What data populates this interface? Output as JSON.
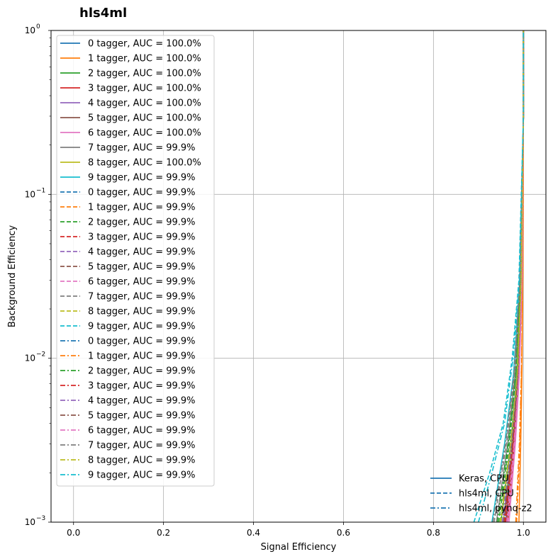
{
  "chart_data": {
    "type": "line",
    "title": "hls4ml",
    "xlabel": "Signal Efficiency",
    "ylabel": "Background Efficiency",
    "xlim": [
      -0.05,
      1.05
    ],
    "ylim": [
      0.001,
      1
    ],
    "yscale": "log",
    "grid": true,
    "x_ticks": [
      "0.0",
      "0.2",
      "0.4",
      "0.6",
      "0.8",
      "1.0"
    ],
    "x_tick_values": [
      0,
      0.2,
      0.4,
      0.6,
      0.8,
      1.0
    ],
    "y_ticks": [
      {
        "base": "10",
        "exp": "−3",
        "value": 0.001
      },
      {
        "base": "10",
        "exp": "−2",
        "value": 0.01
      },
      {
        "base": "10",
        "exp": "−1",
        "value": 0.1
      },
      {
        "base": "10",
        "exp": "0",
        "value": 1
      }
    ],
    "legend_placement": "upper-left",
    "style_legend_placement": "lower-right",
    "colors": [
      "#1f77b4",
      "#ff7f0e",
      "#2ca02c",
      "#d62728",
      "#9467bd",
      "#8c564b",
      "#e377c2",
      "#7f7f7f",
      "#bcbd22",
      "#17becf"
    ],
    "series": [
      {
        "name": "0 tagger, AUC = 100.0%",
        "style": "solid",
        "color": "#1f77b4",
        "x": [
          0.955,
          0.975,
          0.988,
          0.995,
          1.0,
          1.0
        ],
        "y": [
          0.001,
          0.0025,
          0.007,
          0.03,
          0.3,
          1
        ]
      },
      {
        "name": "1 tagger, AUC = 100.0%",
        "style": "solid",
        "color": "#ff7f0e",
        "x": [
          0.99,
          0.994,
          0.997,
          0.999,
          1.0,
          1.0
        ],
        "y": [
          0.001,
          0.003,
          0.009,
          0.04,
          0.3,
          1
        ]
      },
      {
        "name": "2 tagger, AUC = 100.0%",
        "style": "solid",
        "color": "#2ca02c",
        "x": [
          0.95,
          0.972,
          0.986,
          0.995,
          1.0,
          1.0
        ],
        "y": [
          0.001,
          0.003,
          0.008,
          0.03,
          0.3,
          1
        ]
      },
      {
        "name": "3 tagger, AUC = 100.0%",
        "style": "solid",
        "color": "#d62728",
        "x": [
          0.965,
          0.98,
          0.99,
          0.996,
          1.0,
          1.0
        ],
        "y": [
          0.001,
          0.003,
          0.008,
          0.03,
          0.3,
          1
        ]
      },
      {
        "name": "4 tagger, AUC = 100.0%",
        "style": "solid",
        "color": "#9467bd",
        "x": [
          0.96,
          0.978,
          0.99,
          0.996,
          1.0,
          1.0
        ],
        "y": [
          0.001,
          0.003,
          0.008,
          0.03,
          0.3,
          1
        ]
      },
      {
        "name": "5 tagger, AUC = 100.0%",
        "style": "solid",
        "color": "#8c564b",
        "x": [
          0.962,
          0.978,
          0.99,
          0.996,
          1.0,
          1.0
        ],
        "y": [
          0.001,
          0.003,
          0.008,
          0.03,
          0.3,
          1
        ]
      },
      {
        "name": "6 tagger, AUC = 100.0%",
        "style": "solid",
        "color": "#e377c2",
        "x": [
          0.968,
          0.982,
          0.991,
          0.997,
          1.0,
          1.0
        ],
        "y": [
          0.001,
          0.003,
          0.008,
          0.03,
          0.3,
          1
        ]
      },
      {
        "name": "7 tagger, AUC = 99.9%",
        "style": "solid",
        "color": "#7f7f7f",
        "x": [
          0.94,
          0.965,
          0.982,
          0.993,
          1.0,
          1.0
        ],
        "y": [
          0.001,
          0.003,
          0.008,
          0.03,
          0.3,
          1
        ]
      },
      {
        "name": "8 tagger, AUC = 100.0%",
        "style": "solid",
        "color": "#bcbd22",
        "x": [
          0.955,
          0.975,
          0.988,
          0.995,
          1.0,
          1.0
        ],
        "y": [
          0.001,
          0.003,
          0.008,
          0.03,
          0.3,
          1
        ]
      },
      {
        "name": "9 tagger, AUC = 99.9%",
        "style": "solid",
        "color": "#17becf",
        "x": [
          0.93,
          0.958,
          0.978,
          0.992,
          1.0,
          1.0
        ],
        "y": [
          0.001,
          0.003,
          0.008,
          0.03,
          0.3,
          1
        ]
      },
      {
        "name": "0 tagger, AUC = 99.9%",
        "style": "dashed",
        "color": "#1f77b4",
        "x": [
          0.95,
          0.972,
          0.986,
          0.995,
          1.0,
          1.0
        ],
        "y": [
          0.001,
          0.003,
          0.008,
          0.03,
          0.3,
          1
        ]
      },
      {
        "name": "1 tagger, AUC = 99.9%",
        "style": "dashed",
        "color": "#ff7f0e",
        "x": [
          0.985,
          0.992,
          0.996,
          0.999,
          1.0,
          1.0
        ],
        "y": [
          0.001,
          0.003,
          0.009,
          0.04,
          0.3,
          1
        ]
      },
      {
        "name": "2 tagger, AUC = 99.9%",
        "style": "dashed",
        "color": "#2ca02c",
        "x": [
          0.945,
          0.968,
          0.984,
          0.994,
          1.0,
          1.0
        ],
        "y": [
          0.001,
          0.003,
          0.008,
          0.03,
          0.3,
          1
        ]
      },
      {
        "name": "3 tagger, AUC = 99.9%",
        "style": "dashed",
        "color": "#d62728",
        "x": [
          0.96,
          0.978,
          0.989,
          0.996,
          1.0,
          1.0
        ],
        "y": [
          0.001,
          0.003,
          0.008,
          0.03,
          0.3,
          1
        ]
      },
      {
        "name": "4 tagger, AUC = 99.9%",
        "style": "dashed",
        "color": "#9467bd",
        "x": [
          0.955,
          0.975,
          0.988,
          0.995,
          1.0,
          1.0
        ],
        "y": [
          0.001,
          0.003,
          0.008,
          0.03,
          0.3,
          1
        ]
      },
      {
        "name": "5 tagger, AUC = 99.9%",
        "style": "dashed",
        "color": "#8c564b",
        "x": [
          0.958,
          0.976,
          0.989,
          0.996,
          1.0,
          1.0
        ],
        "y": [
          0.001,
          0.003,
          0.008,
          0.03,
          0.3,
          1
        ]
      },
      {
        "name": "6 tagger, AUC = 99.9%",
        "style": "dashed",
        "color": "#e377c2",
        "x": [
          0.965,
          0.98,
          0.99,
          0.997,
          1.0,
          1.0
        ],
        "y": [
          0.001,
          0.003,
          0.008,
          0.03,
          0.3,
          1
        ]
      },
      {
        "name": "7 tagger, AUC = 99.9%",
        "style": "dashed",
        "color": "#7f7f7f",
        "x": [
          0.935,
          0.962,
          0.98,
          0.992,
          1.0,
          1.0
        ],
        "y": [
          0.001,
          0.003,
          0.008,
          0.03,
          0.3,
          1
        ]
      },
      {
        "name": "8 tagger, AUC = 99.9%",
        "style": "dashed",
        "color": "#bcbd22",
        "x": [
          0.95,
          0.972,
          0.986,
          0.995,
          1.0,
          1.0
        ],
        "y": [
          0.001,
          0.003,
          0.008,
          0.03,
          0.3,
          1
        ]
      },
      {
        "name": "9 tagger, AUC = 99.9%",
        "style": "dashed",
        "color": "#17becf",
        "x": [
          0.89,
          0.925,
          0.955,
          0.975,
          0.99,
          1.0,
          1.0
        ],
        "y": [
          0.001,
          0.002,
          0.004,
          0.01,
          0.03,
          0.3,
          1
        ]
      },
      {
        "name": "0 tagger, AUC = 99.9%",
        "style": "dashdot",
        "color": "#1f77b4",
        "x": [
          0.948,
          0.97,
          0.985,
          0.994,
          1.0,
          1.0
        ],
        "y": [
          0.001,
          0.003,
          0.008,
          0.03,
          0.3,
          1
        ]
      },
      {
        "name": "1 tagger, AUC = 99.9%",
        "style": "dashdot",
        "color": "#ff7f0e",
        "x": [
          0.983,
          0.991,
          0.996,
          0.999,
          1.0,
          1.0
        ],
        "y": [
          0.001,
          0.003,
          0.009,
          0.04,
          0.3,
          1
        ]
      },
      {
        "name": "2 tagger, AUC = 99.9%",
        "style": "dashdot",
        "color": "#2ca02c",
        "x": [
          0.942,
          0.966,
          0.983,
          0.994,
          1.0,
          1.0
        ],
        "y": [
          0.001,
          0.003,
          0.008,
          0.03,
          0.3,
          1
        ]
      },
      {
        "name": "3 tagger, AUC = 99.9%",
        "style": "dashdot",
        "color": "#d62728",
        "x": [
          0.958,
          0.977,
          0.989,
          0.996,
          1.0,
          1.0
        ],
        "y": [
          0.001,
          0.003,
          0.008,
          0.03,
          0.3,
          1
        ]
      },
      {
        "name": "4 tagger, AUC = 99.9%",
        "style": "dashdot",
        "color": "#9467bd",
        "x": [
          0.953,
          0.974,
          0.987,
          0.995,
          1.0,
          1.0
        ],
        "y": [
          0.001,
          0.003,
          0.008,
          0.03,
          0.3,
          1
        ]
      },
      {
        "name": "5 tagger, AUC = 99.9%",
        "style": "dashdot",
        "color": "#8c564b",
        "x": [
          0.956,
          0.975,
          0.988,
          0.996,
          1.0,
          1.0
        ],
        "y": [
          0.001,
          0.003,
          0.008,
          0.03,
          0.3,
          1
        ]
      },
      {
        "name": "6 tagger, AUC = 99.9%",
        "style": "dashdot",
        "color": "#e377c2",
        "x": [
          0.963,
          0.979,
          0.99,
          0.997,
          1.0,
          1.0
        ],
        "y": [
          0.001,
          0.003,
          0.008,
          0.03,
          0.3,
          1
        ]
      },
      {
        "name": "7 tagger, AUC = 99.9%",
        "style": "dashdot",
        "color": "#7f7f7f",
        "x": [
          0.932,
          0.96,
          0.979,
          0.992,
          1.0,
          1.0
        ],
        "y": [
          0.001,
          0.003,
          0.008,
          0.03,
          0.3,
          1
        ]
      },
      {
        "name": "8 tagger, AUC = 99.9%",
        "style": "dashdot",
        "color": "#bcbd22",
        "x": [
          0.948,
          0.971,
          0.986,
          0.995,
          1.0,
          1.0
        ],
        "y": [
          0.001,
          0.003,
          0.008,
          0.03,
          0.3,
          1
        ]
      },
      {
        "name": "9 tagger, AUC = 99.9%",
        "style": "dashdot",
        "color": "#17becf",
        "x": [
          0.9,
          0.93,
          0.958,
          0.977,
          0.991,
          1.0,
          1.0
        ],
        "y": [
          0.001,
          0.002,
          0.004,
          0.01,
          0.03,
          0.3,
          1
        ]
      }
    ],
    "style_legend": [
      {
        "name": "Keras, CPU",
        "style": "solid",
        "color": "#1f77b4"
      },
      {
        "name": "hls4ml, CPU",
        "style": "dashed",
        "color": "#1f77b4"
      },
      {
        "name": "hls4ml, pynq-z2",
        "style": "dashdot",
        "color": "#1f77b4"
      }
    ]
  }
}
